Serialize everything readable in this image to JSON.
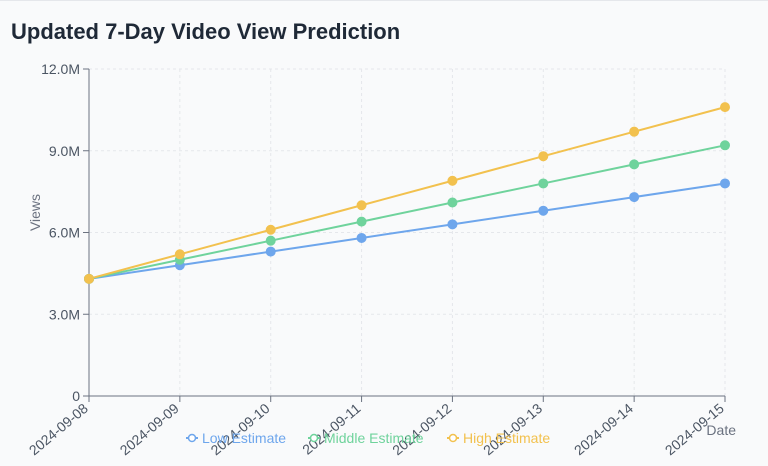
{
  "header": {
    "title": "Updated 7-Day Video View Prediction"
  },
  "colors": {
    "low": "#6ea6ec",
    "middle": "#6fd39c",
    "high": "#f2c14e",
    "grid": "#e5e7eb",
    "axis": "#6b7280"
  },
  "chart_data": {
    "type": "line",
    "title": "Updated 7-Day Video View Prediction",
    "xlabel": "Date",
    "ylabel": "Views",
    "categories": [
      "2024-09-08",
      "2024-09-09",
      "2024-09-10",
      "2024-09-11",
      "2024-09-12",
      "2024-09-13",
      "2024-09-14",
      "2024-09-15"
    ],
    "ylim": [
      0,
      12000000
    ],
    "yticks": [
      0,
      3000000,
      6000000,
      9000000,
      12000000
    ],
    "ytick_labels": [
      "0",
      "3.0M",
      "6.0M",
      "9.0M",
      "12.0M"
    ],
    "grid": true,
    "legend": "bottom",
    "series": [
      {
        "name": "Low Estimate",
        "color": "#6ea6ec",
        "values": [
          4300000,
          4800000,
          5300000,
          5800000,
          6300000,
          6800000,
          7300000,
          7800000
        ]
      },
      {
        "name": "Middle Estimate",
        "color": "#6fd39c",
        "values": [
          4300000,
          5000000,
          5700000,
          6400000,
          7100000,
          7800000,
          8500000,
          9200000
        ]
      },
      {
        "name": "High Estimate",
        "color": "#f2c14e",
        "values": [
          4300000,
          5200000,
          6100000,
          7000000,
          7900000,
          8800000,
          9700000,
          10600000
        ]
      }
    ]
  }
}
